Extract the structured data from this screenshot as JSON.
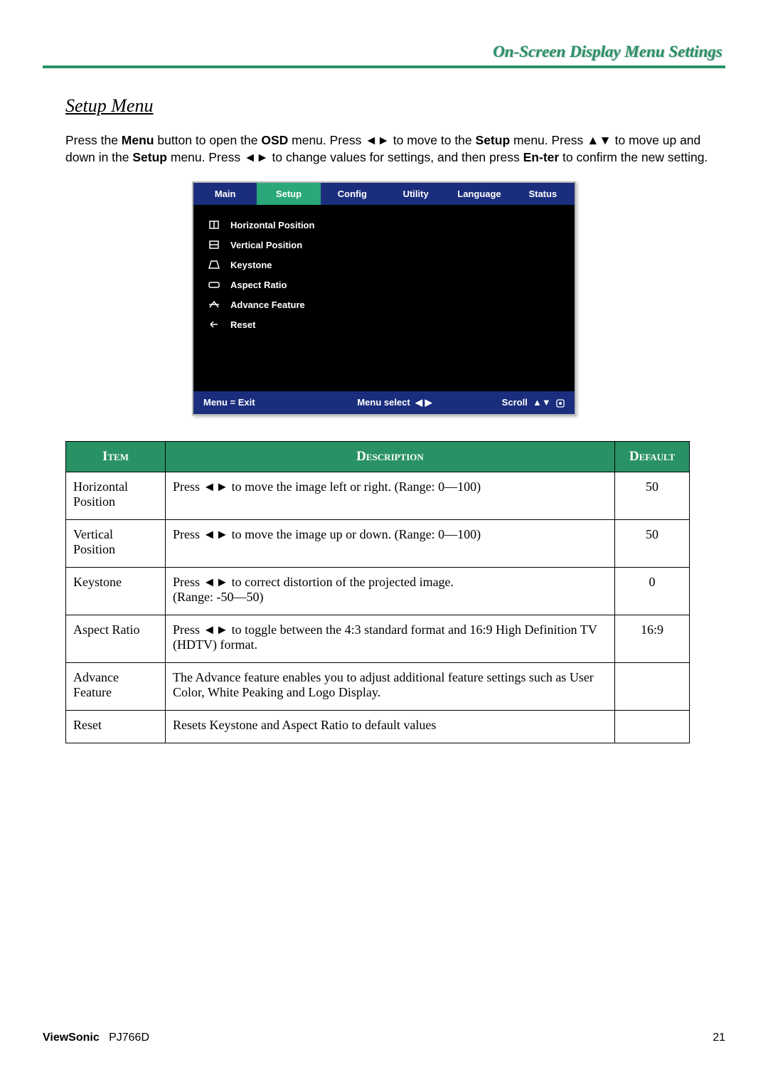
{
  "header": {
    "title": "On-Screen Display Menu Settings"
  },
  "section": {
    "title": "Setup Menu"
  },
  "intro": {
    "p1": "Press the ",
    "p2_bold": "Menu",
    "p3": " button to open the ",
    "p4_bold": "OSD",
    "p5": " menu. Press ",
    "arr_lr1": "◄►",
    "p6": " to move to the ",
    "p7_bold": "Setup",
    "p8": " menu. Press ",
    "arr_ud": "▲▼",
    "p9": " to move up and down in the ",
    "p10_bold": "Setup",
    "p11": " menu. Press ",
    "arr_lr2": "◄►",
    "p12": " to change values for settings, and then press ",
    "p13_bold": "En-ter",
    "p14": " to confirm the new setting."
  },
  "osd": {
    "tabs": [
      "Main",
      "Setup",
      "Config",
      "Utility",
      "Language",
      "Status"
    ],
    "selected_tab_index": 1,
    "items": [
      {
        "label": "Horizontal Position",
        "icon": "hpos"
      },
      {
        "label": "Vertical Position",
        "icon": "vpos"
      },
      {
        "label": "Keystone",
        "icon": "keystone"
      },
      {
        "label": "Aspect Ratio",
        "icon": "aspect"
      },
      {
        "label": "Advance Feature",
        "icon": "advance"
      },
      {
        "label": "Reset",
        "icon": "reset"
      }
    ],
    "footer": {
      "left": "Menu = Exit",
      "mid_label": "Menu select",
      "mid_icons": "◀ ▶",
      "right_label": "Scroll",
      "right_icons": "▲▼"
    }
  },
  "table": {
    "headers": {
      "item": "Item",
      "desc": "Description",
      "def": "Default"
    },
    "rows": [
      {
        "item": "Horizontal Position",
        "desc_pre": "Press ",
        "desc_arrows": "◄►",
        "desc_post": " to move the image left or right. (Range: 0—100)",
        "default": "50"
      },
      {
        "item": "Vertical Position",
        "desc_pre": "Press ",
        "desc_arrows": "◄►",
        "desc_post": " to move the image up or down. (Range: 0—100)",
        "default": "50"
      },
      {
        "item": "Keystone",
        "desc_pre": "Press ",
        "desc_arrows": "◄►",
        "desc_post": " to correct distortion of the projected image.\n(Range: -50—50)",
        "default": "0"
      },
      {
        "item": "Aspect Ratio",
        "desc_pre": "Press ",
        "desc_arrows": "◄►",
        "desc_post": " to toggle between the 4:3 standard format and 16:9 High Definition TV (HDTV) format.",
        "default": "16:9"
      },
      {
        "item": "Advance Feature",
        "desc_pre": "",
        "desc_arrows": "",
        "desc_post": "The Advance feature enables you to adjust additional feature settings such as User Color, White Peaking and Logo Display.",
        "default": ""
      },
      {
        "item": "Reset",
        "desc_pre": "",
        "desc_arrows": "",
        "desc_post": "Resets Keystone and Aspect Ratio to default values",
        "default": ""
      }
    ]
  },
  "footer": {
    "brand": "ViewSonic",
    "model": "PJ766D",
    "page": "21"
  },
  "colors": {
    "accent": "#299264",
    "tab_blue": "#1a2e7d",
    "tab_green": "#2aa87a"
  }
}
